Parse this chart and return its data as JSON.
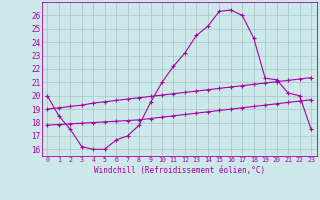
{
  "xlabel": "Windchill (Refroidissement éolien,°C)",
  "background_color": "#cce8e8",
  "grid_color": "#aacccc",
  "line_color": "#aa00aa",
  "xlim": [
    -0.5,
    23.5
  ],
  "ylim": [
    15.5,
    27.0
  ],
  "yticks": [
    16,
    17,
    18,
    19,
    20,
    21,
    22,
    23,
    24,
    25,
    26
  ],
  "xticks": [
    0,
    1,
    2,
    3,
    4,
    5,
    6,
    7,
    8,
    9,
    10,
    11,
    12,
    13,
    14,
    15,
    16,
    17,
    18,
    19,
    20,
    21,
    22,
    23
  ],
  "series1_x": [
    0,
    1,
    2,
    3,
    4,
    5,
    6,
    7,
    8,
    9,
    10,
    11,
    12,
    13,
    14,
    15,
    16,
    17,
    18,
    19,
    20,
    21,
    22,
    23
  ],
  "series1_y": [
    20.0,
    18.5,
    17.5,
    16.2,
    16.0,
    16.0,
    16.7,
    17.0,
    17.8,
    19.5,
    21.0,
    22.2,
    23.2,
    24.5,
    25.2,
    26.3,
    26.4,
    26.0,
    24.3,
    21.3,
    21.2,
    20.2,
    20.0,
    17.5
  ],
  "series2_x": [
    0,
    1,
    2,
    3,
    4,
    5,
    6,
    7,
    8,
    9,
    10,
    11,
    12,
    13,
    14,
    15,
    16,
    17,
    18,
    19,
    20,
    21,
    22,
    23
  ],
  "series2_y": [
    19.0,
    19.1,
    19.2,
    19.3,
    19.45,
    19.55,
    19.65,
    19.75,
    19.85,
    19.95,
    20.05,
    20.15,
    20.25,
    20.35,
    20.45,
    20.55,
    20.65,
    20.75,
    20.85,
    20.95,
    21.05,
    21.15,
    21.25,
    21.35
  ],
  "series3_x": [
    0,
    1,
    2,
    3,
    4,
    5,
    6,
    7,
    8,
    9,
    10,
    11,
    12,
    13,
    14,
    15,
    16,
    17,
    18,
    19,
    20,
    21,
    22,
    23
  ],
  "series3_y": [
    17.8,
    17.85,
    17.9,
    17.95,
    18.0,
    18.05,
    18.1,
    18.15,
    18.2,
    18.3,
    18.4,
    18.5,
    18.6,
    18.7,
    18.8,
    18.9,
    19.0,
    19.1,
    19.2,
    19.3,
    19.4,
    19.5,
    19.6,
    19.7
  ]
}
